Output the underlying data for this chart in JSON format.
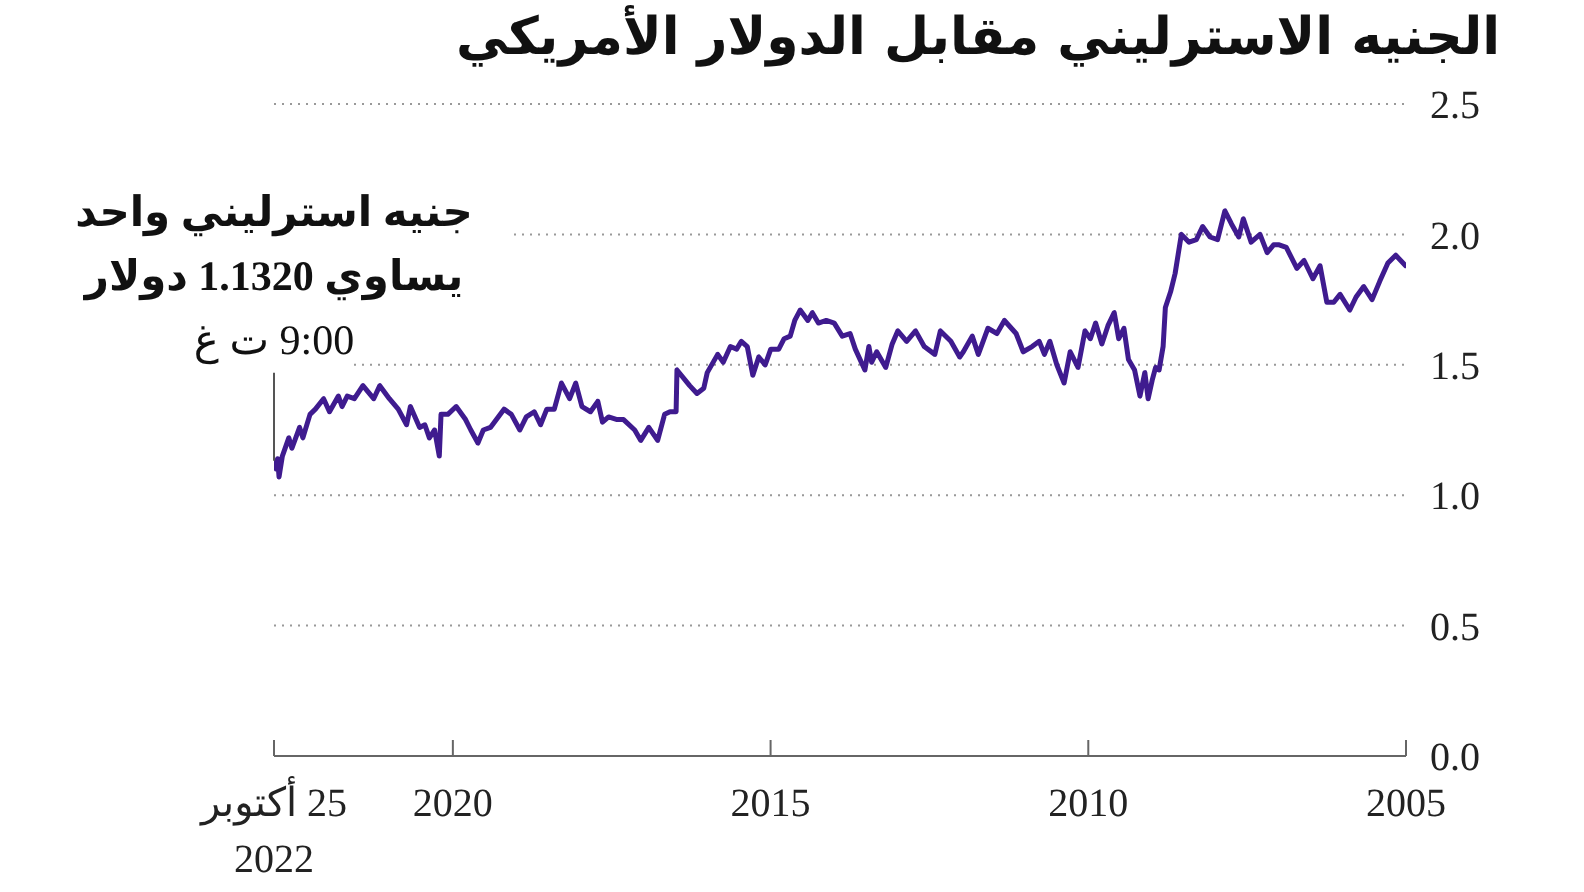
{
  "chart_data": {
    "type": "line",
    "title": "الجنيه الاسترليني مقابل الدولار الأمريكي",
    "annotations": [
      "جنيه استرليني واحد يساوي 1.1320 دولار",
      "9:00 ت غ"
    ],
    "x": [
      "2005-01-03",
      "2005-03-01",
      "2005-04-15",
      "2005-06-01",
      "2005-07-15",
      "2005-09-01",
      "2005-10-15",
      "2005-11-20",
      "2006-01-15",
      "2006-02-20",
      "2006-04-01",
      "2006-05-10",
      "2006-06-20",
      "2006-08-10",
      "2006-09-20",
      "2006-11-20",
      "2006-12-31",
      "2007-02-01",
      "2007-03-10",
      "2007-04-20",
      "2007-06-10",
      "2007-07-25",
      "2007-08-20",
      "2007-10-01",
      "2007-11-08",
      "2007-12-20",
      "2008-02-01",
      "2008-03-15",
      "2008-04-20",
      "2008-06-01",
      "2008-07-15",
      "2008-08-20",
      "2008-09-15",
      "2008-10-15",
      "2008-10-28",
      "2008-11-20",
      "2008-12-10",
      "2008-12-30",
      "2009-01-22",
      "2009-02-10",
      "2009-03-10",
      "2009-04-10",
      "2009-05-15",
      "2009-06-10",
      "2009-07-10",
      "2009-08-05",
      "2009-09-10",
      "2009-10-15",
      "2009-11-20",
      "2009-12-20",
      "2010-01-20",
      "2010-03-01",
      "2010-04-15",
      "2010-05-20",
      "2010-07-01",
      "2010-08-10",
      "2010-09-10",
      "2010-10-10",
      "2010-11-20",
      "2011-01-10",
      "2011-02-20",
      "2011-04-28",
      "2011-06-10",
      "2011-08-01",
      "2011-09-25",
      "2011-10-30",
      "2011-12-20",
      "2012-01-10",
      "2012-03-01",
      "2012-04-30",
      "2012-06-01",
      "2012-08-01",
      "2012-09-20",
      "2012-11-10",
      "2012-12-31",
      "2013-02-01",
      "2013-03-10",
      "2013-05-01",
      "2013-05-30",
      "2013-06-15",
      "2013-07-08",
      "2013-09-01",
      "2013-10-01",
      "2013-11-15",
      "2013-12-31",
      "2014-02-15",
      "2014-04-01",
      "2014-05-06",
      "2014-06-01",
      "2014-07-15",
      "2014-08-15",
      "2014-09-10",
      "2014-10-15",
      "2014-11-15",
      "2014-12-31",
      "2015-02-01",
      "2015-03-10",
      "2015-04-13",
      "2015-05-15",
      "2015-06-18",
      "2015-07-15",
      "2015-08-20",
      "2015-09-30",
      "2015-11-01",
      "2015-12-31",
      "2016-01-20",
      "2016-02-28",
      "2016-04-10",
      "2016-06-22",
      "2016-06-27",
      "2016-08-01",
      "2016-09-01",
      "2016-10-11",
      "2016-12-01",
      "2017-01-16",
      "2017-02-20",
      "2017-04-25",
      "2017-06-01",
      "2017-07-20",
      "2017-08-24",
      "2017-09-20",
      "2017-11-01",
      "2017-12-20",
      "2018-01-25",
      "2018-03-01",
      "2018-04-17",
      "2018-05-28",
      "2018-07-10",
      "2018-08-15",
      "2018-09-20",
      "2018-11-05",
      "2018-12-12",
      "2019-01-30",
      "2019-03-13",
      "2019-05-30",
      "2019-07-10",
      "2019-08-10",
      "2019-09-20",
      "2019-10-20",
      "2019-12-13",
      "2020-01-30",
      "2020-03-09",
      "2020-03-19",
      "2020-04-15",
      "2020-05-15",
      "2020-06-10",
      "2020-07-10",
      "2020-09-01",
      "2020-09-23",
      "2020-11-10",
      "2020-12-31",
      "2021-02-24",
      "2021-03-31",
      "2021-06-01",
      "2021-07-20",
      "2021-08-30",
      "2021-09-29",
      "2021-10-20",
      "2021-12-10",
      "2022-01-13",
      "2022-03-01",
      "2022-04-01",
      "2022-05-12",
      "2022-05-31",
      "2022-07-14",
      "2022-08-01",
      "2022-09-07",
      "2022-09-26",
      "2022-10-04",
      "2022-10-12",
      "2022-10-25"
    ],
    "series": [
      {
        "color": "#3f1b8f",
        "values": [
          1.88,
          1.92,
          1.89,
          1.82,
          1.75,
          1.8,
          1.76,
          1.71,
          1.77,
          1.74,
          1.74,
          1.88,
          1.83,
          1.9,
          1.87,
          1.95,
          1.96,
          1.96,
          1.93,
          2.0,
          1.97,
          2.06,
          1.99,
          2.04,
          2.09,
          1.98,
          1.99,
          2.03,
          1.98,
          1.97,
          2.0,
          1.85,
          1.78,
          1.72,
          1.57,
          1.48,
          1.49,
          1.44,
          1.37,
          1.47,
          1.38,
          1.48,
          1.52,
          1.64,
          1.6,
          1.7,
          1.65,
          1.58,
          1.66,
          1.6,
          1.63,
          1.49,
          1.55,
          1.43,
          1.5,
          1.59,
          1.54,
          1.59,
          1.57,
          1.55,
          1.62,
          1.67,
          1.62,
          1.64,
          1.54,
          1.61,
          1.55,
          1.53,
          1.59,
          1.63,
          1.54,
          1.57,
          1.63,
          1.59,
          1.63,
          1.58,
          1.49,
          1.55,
          1.51,
          1.57,
          1.48,
          1.56,
          1.62,
          1.61,
          1.66,
          1.67,
          1.66,
          1.7,
          1.67,
          1.71,
          1.67,
          1.61,
          1.6,
          1.56,
          1.56,
          1.5,
          1.53,
          1.46,
          1.57,
          1.59,
          1.56,
          1.57,
          1.51,
          1.54,
          1.47,
          1.41,
          1.39,
          1.42,
          1.48,
          1.32,
          1.32,
          1.31,
          1.21,
          1.26,
          1.21,
          1.25,
          1.29,
          1.29,
          1.3,
          1.28,
          1.36,
          1.32,
          1.34,
          1.43,
          1.37,
          1.43,
          1.33,
          1.33,
          1.27,
          1.32,
          1.3,
          1.25,
          1.31,
          1.33,
          1.26,
          1.25,
          1.2,
          1.25,
          1.29,
          1.34,
          1.31,
          1.31,
          1.15,
          1.25,
          1.22,
          1.27,
          1.26,
          1.34,
          1.27,
          1.33,
          1.37,
          1.42,
          1.37,
          1.42,
          1.37,
          1.38,
          1.34,
          1.38,
          1.32,
          1.37,
          1.33,
          1.31,
          1.22,
          1.26,
          1.18,
          1.22,
          1.15,
          1.07,
          1.14,
          1.1,
          1.132
        ]
      }
    ],
    "xlim": [
      "2022-10-25",
      "2005-01-01"
    ],
    "xticks": [
      {
        "value": "2022-10-25",
        "label": "25 أكتوبر 2022"
      },
      "2020",
      "2015",
      "2010",
      "2005"
    ],
    "ylim": [
      0,
      2.5
    ],
    "yticks": [
      {
        "value": 0,
        "label": "0.0"
      },
      0.5,
      {
        "value": 1,
        "label": "1.0"
      },
      1.5,
      {
        "value": 2,
        "label": "2.0"
      },
      2.5
    ],
    "grid": "y"
  }
}
